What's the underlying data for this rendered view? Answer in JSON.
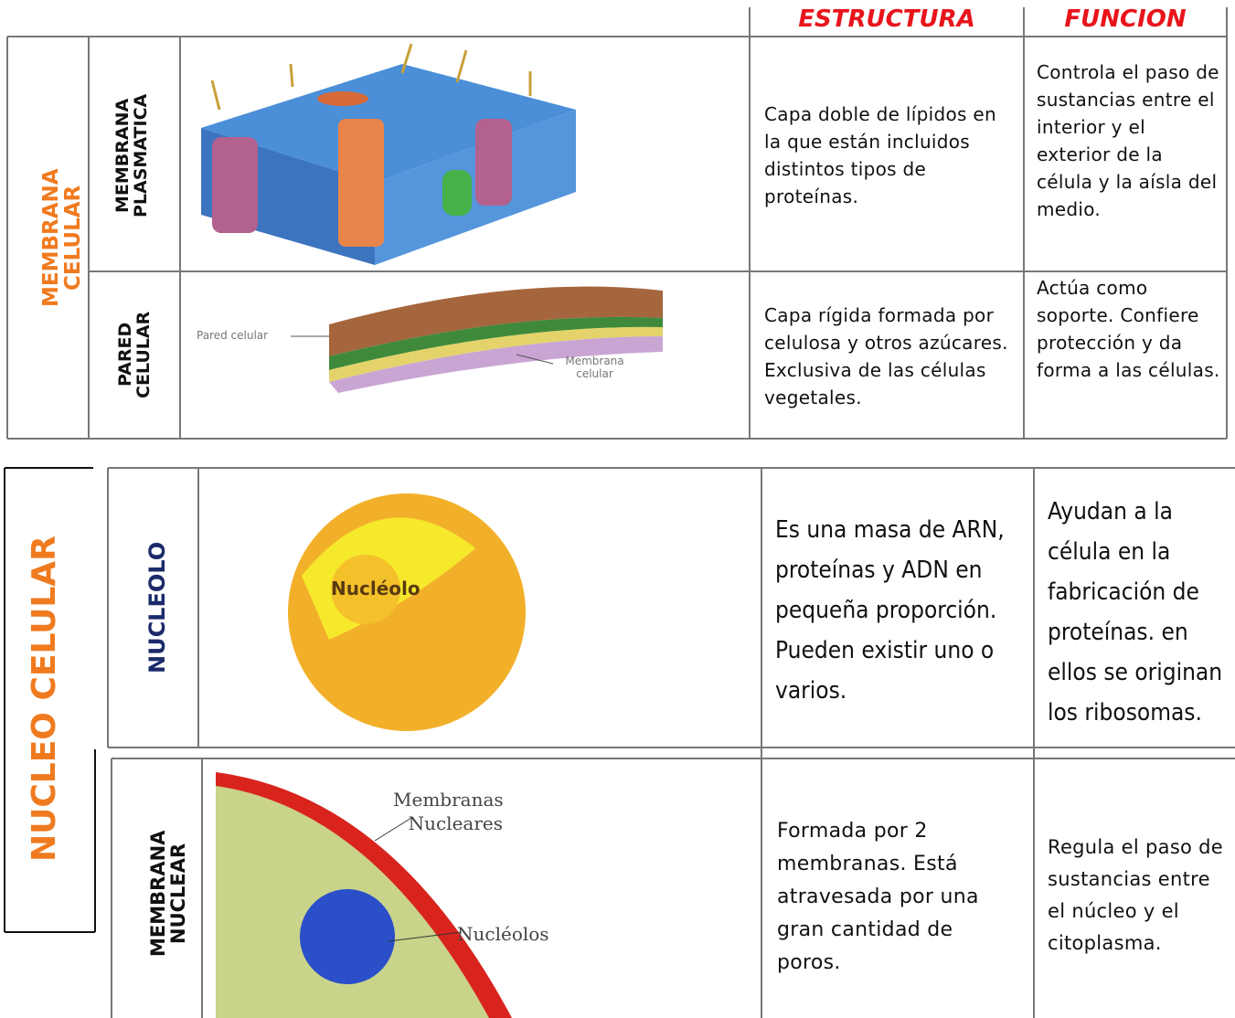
{
  "header": {
    "estructura": "ESTRUCTURA",
    "funcion": "FUNCION"
  },
  "sections": [
    {
      "title": "MEMBRANA CELULAR",
      "rows": [
        {
          "name": "MEMBRANA PLASMATICA",
          "estructura": "Capa doble de lípidos en la que están incluidos distintos tipos de proteínas.",
          "funcion": "Controla el paso de sustancias entre el interior y el exterior de la célula y la aísla del medio."
        },
        {
          "name": "PARED CELULAR",
          "image_labels": [
            "Pared celular",
            "Membrana celular"
          ],
          "estructura": "Capa rígida formada por celulosa y otros azúcares. Exclusiva de las células vegetales.",
          "funcion": "Actúa como soporte. Confiere protección y da forma a las células."
        }
      ]
    },
    {
      "title": "NUCLEO CELULAR",
      "rows": [
        {
          "name": "NUCLEOLO",
          "image_labels": [
            "Nucléolo"
          ],
          "estructura": "Es una masa de ARN, proteínas y ADN en pequeña proporción. Pueden existir uno o varios.",
          "funcion": "Ayudan a la célula en la fabricación de proteínas. en ellos se originan los ribosomas."
        },
        {
          "name": "MEMBRANA NUCLEAR",
          "image_labels": [
            "Membranas Nucleares",
            "Nucléolos"
          ],
          "estructura": "Formada por 2 membranas. Está atravesada por una gran cantidad de poros.",
          "funcion": "Regula el paso de sustancias entre el núcleo y el citoplasma."
        }
      ]
    }
  ]
}
